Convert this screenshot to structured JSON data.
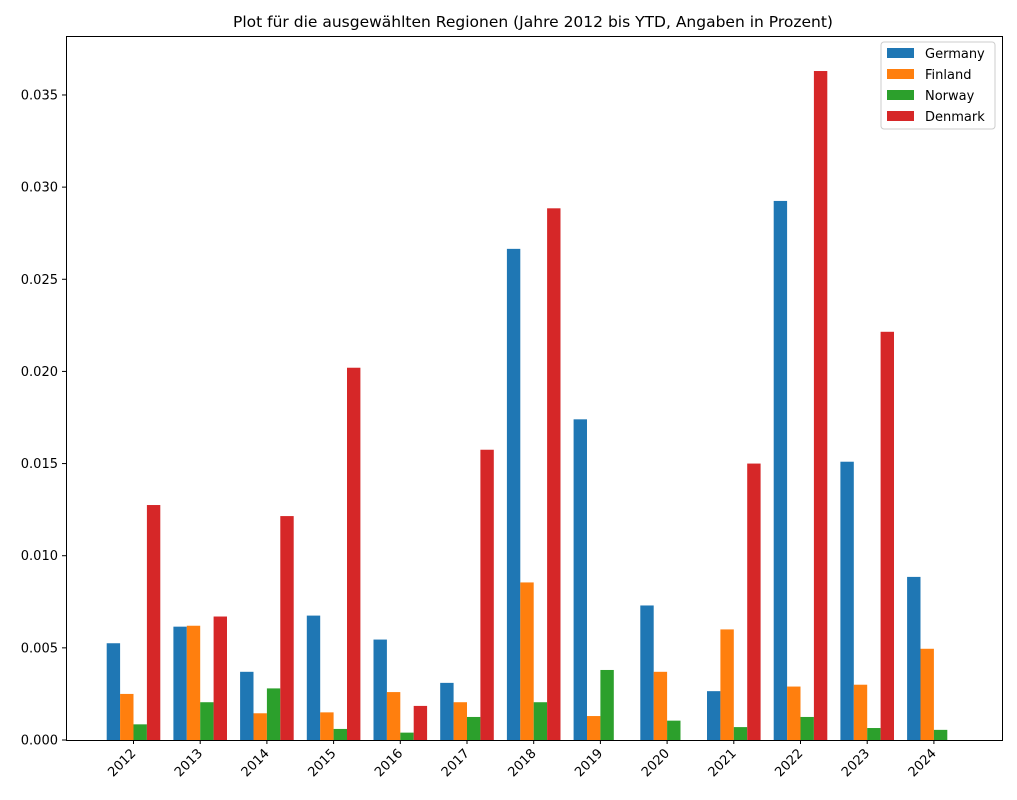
{
  "chart_data": {
    "type": "bar",
    "title": "Plot für die ausgewählten Regionen (Jahre 2012 bis YTD, Angaben in Prozent)",
    "xlabel": "",
    "ylabel": "",
    "categories": [
      "2012",
      "2013",
      "2014",
      "2015",
      "2016",
      "2017",
      "2018",
      "2019",
      "2020",
      "2021",
      "2022",
      "2023",
      "2024"
    ],
    "series": [
      {
        "name": "Germany",
        "color": "#1f77b4",
        "values": [
          0.00525,
          0.00615,
          0.0037,
          0.00675,
          0.00545,
          0.0031,
          0.02665,
          0.0174,
          0.0073,
          0.00265,
          0.02925,
          0.0151,
          0.00885
        ]
      },
      {
        "name": "Finland",
        "color": "#ff7f0e",
        "values": [
          0.0025,
          0.0062,
          0.00145,
          0.0015,
          0.0026,
          0.00205,
          0.00855,
          0.0013,
          0.0037,
          0.006,
          0.0029,
          0.003,
          0.00495
        ]
      },
      {
        "name": "Norway",
        "color": "#2ca02c",
        "values": [
          0.00085,
          0.00205,
          0.0028,
          0.0006,
          0.0004,
          0.00125,
          0.00205,
          0.0038,
          0.00105,
          0.0007,
          0.00125,
          0.00065,
          0.00055
        ]
      },
      {
        "name": "Denmark",
        "color": "#d62728",
        "values": [
          0.01275,
          0.0067,
          0.01215,
          0.0202,
          0.00185,
          0.01575,
          0.02885,
          0.0,
          0.0,
          0.015,
          0.0363,
          0.02215,
          0.0
        ]
      }
    ],
    "ylim": [
      0,
      0.0382
    ],
    "yticks": [
      "0.000",
      "0.005",
      "0.010",
      "0.015",
      "0.020",
      "0.025",
      "0.030",
      "0.035"
    ],
    "legend_position": "top-right",
    "grid": false
  }
}
